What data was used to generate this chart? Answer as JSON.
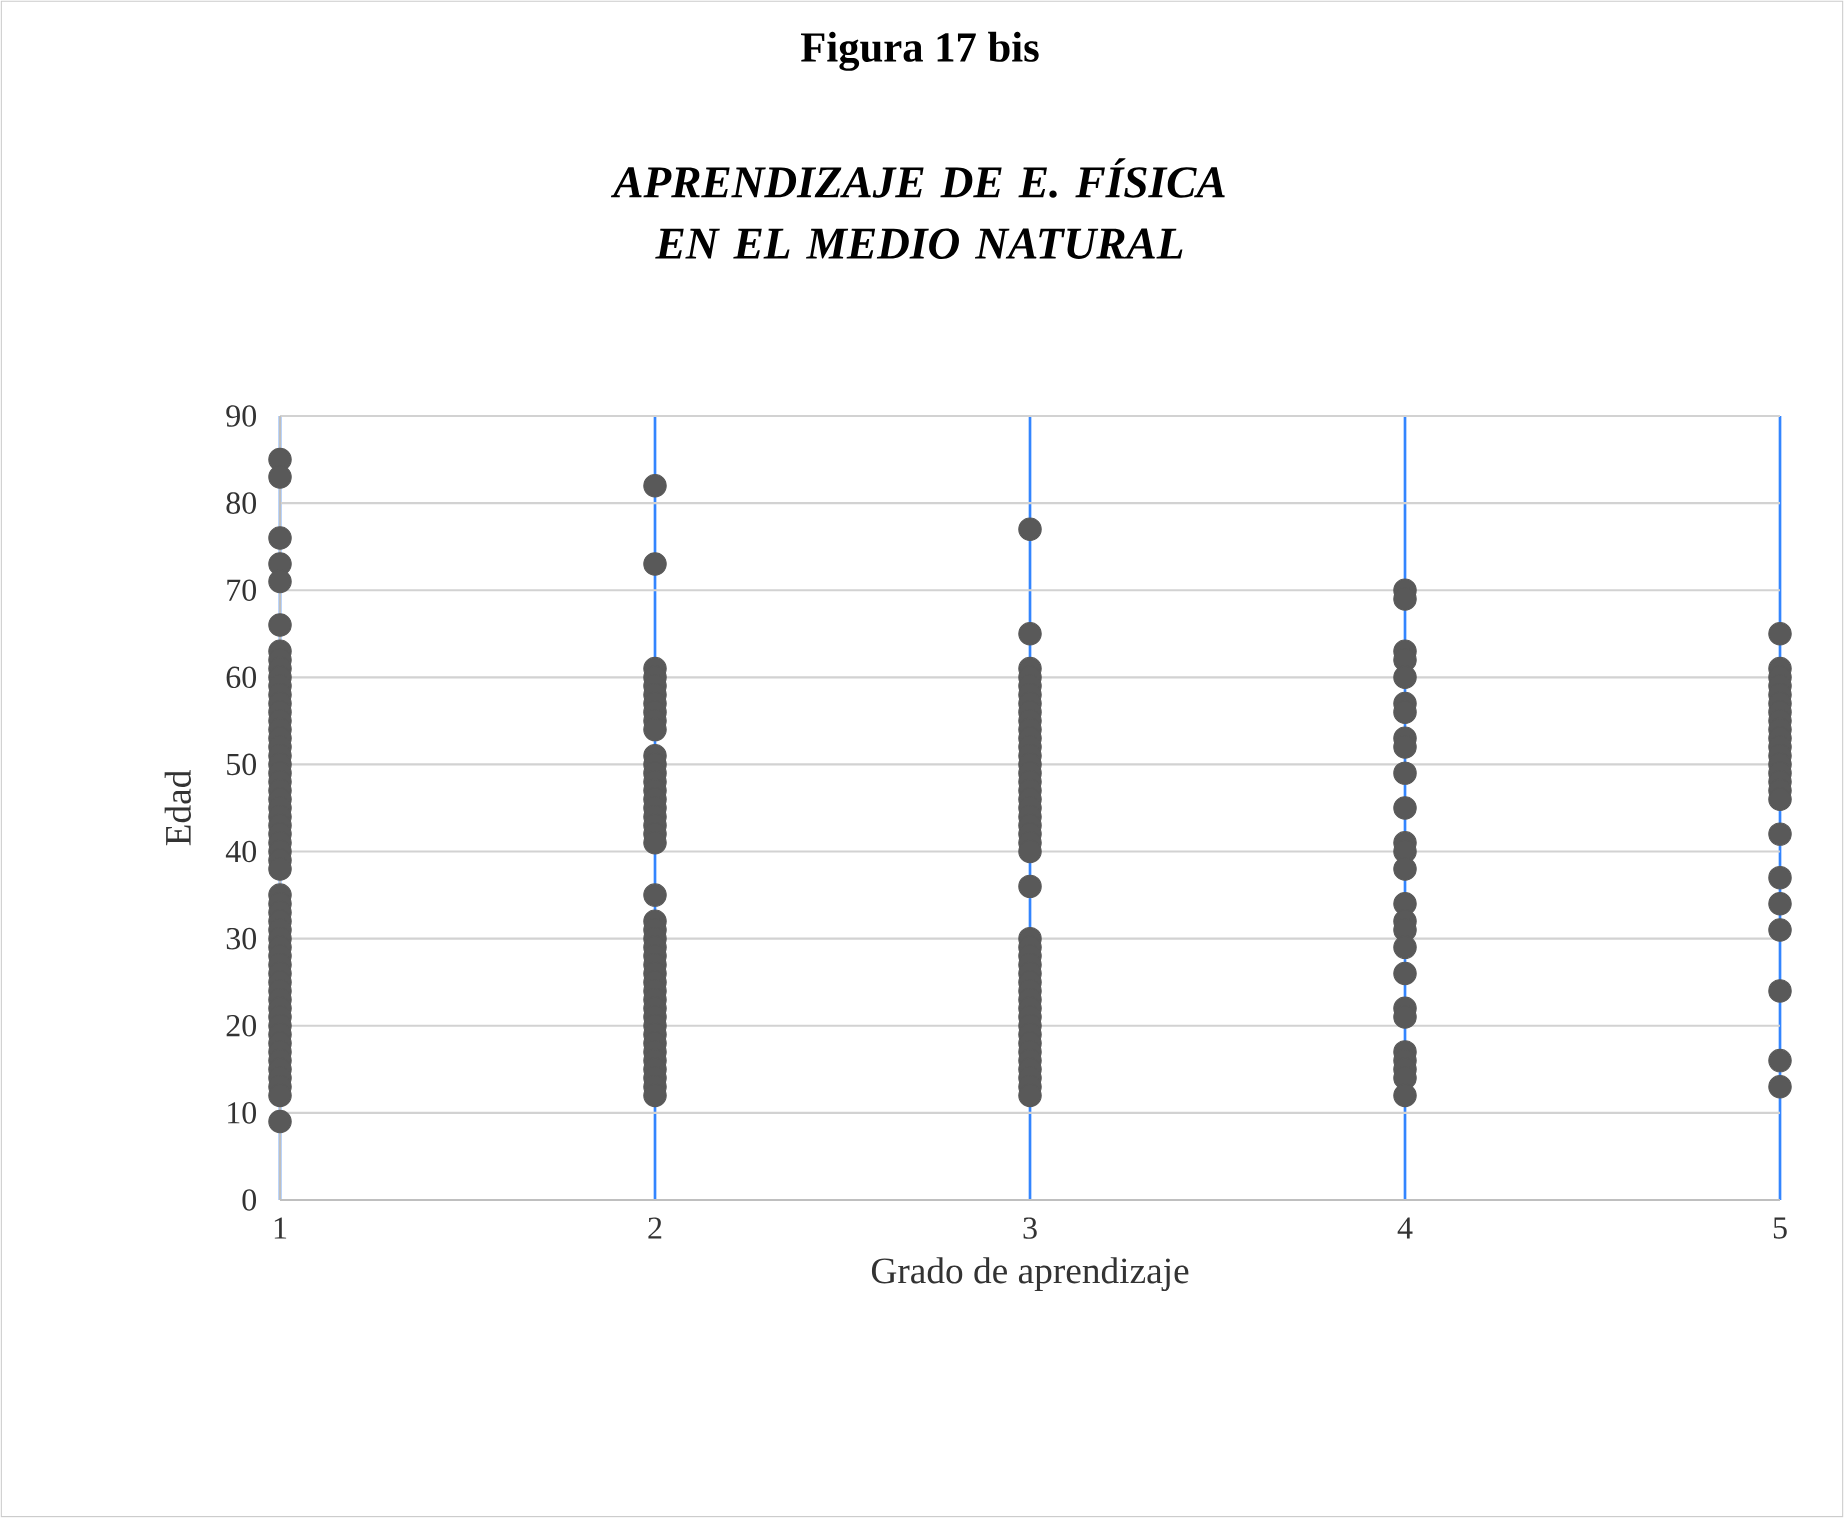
{
  "chart_data": {
    "type": "scatter",
    "title": "Figura 17  bis",
    "subtitle": "APRENDIZAJE DE E. FÍSICA EN EL MEDIO NATURAL",
    "xlabel": "Grado de aprendizaje",
    "ylabel": "Edad",
    "x": [
      1,
      1,
      1,
      1,
      1,
      1,
      1,
      1,
      1,
      1,
      1,
      1,
      1,
      1,
      1,
      1,
      1,
      1,
      1,
      1,
      1,
      1,
      1,
      1,
      1,
      1,
      1,
      1,
      1,
      1,
      1,
      1,
      1,
      1,
      1,
      1,
      1,
      1,
      1,
      1,
      1,
      1,
      1,
      1,
      1,
      1,
      1,
      1,
      1,
      1,
      1,
      1,
      1,
      1,
      1,
      1,
      1,
      2,
      2,
      2,
      2,
      2,
      2,
      2,
      2,
      2,
      2,
      2,
      2,
      2,
      2,
      2,
      2,
      2,
      2,
      2,
      2,
      2,
      2,
      2,
      2,
      2,
      2,
      2,
      2,
      2,
      2,
      2,
      2,
      2,
      2,
      2,
      2,
      2,
      2,
      2,
      2,
      2,
      2,
      2,
      3,
      3,
      3,
      3,
      3,
      3,
      3,
      3,
      3,
      3,
      3,
      3,
      3,
      3,
      3,
      3,
      3,
      3,
      3,
      3,
      3,
      3,
      3,
      3,
      3,
      3,
      3,
      3,
      3,
      3,
      3,
      3,
      3,
      3,
      3,
      3,
      3,
      3,
      3,
      3,
      3,
      3,
      3,
      3,
      4,
      4,
      4,
      4,
      4,
      4,
      4,
      4,
      4,
      4,
      4,
      4,
      4,
      4,
      4,
      4,
      4,
      4,
      4,
      4,
      4,
      4,
      4,
      4,
      4,
      4,
      5,
      5,
      5,
      5,
      5,
      5,
      5,
      5,
      5,
      5,
      5,
      5,
      5,
      5,
      5,
      5,
      5,
      5,
      5,
      5,
      5,
      5,
      5,
      5
    ],
    "values": [
      85,
      83,
      76,
      73,
      71,
      66,
      63,
      62,
      61,
      60,
      59,
      58,
      57,
      56,
      55,
      54,
      53,
      52,
      51,
      50,
      49,
      48,
      47,
      46,
      45,
      44,
      43,
      42,
      41,
      40,
      39,
      38,
      35,
      34,
      33,
      32,
      31,
      30,
      29,
      28,
      27,
      26,
      25,
      24,
      23,
      22,
      21,
      20,
      19,
      18,
      17,
      16,
      15,
      14,
      13,
      12,
      9,
      82,
      73,
      61,
      60,
      59,
      58,
      57,
      56,
      55,
      54,
      51,
      50,
      49,
      48,
      47,
      46,
      45,
      44,
      43,
      42,
      41,
      35,
      32,
      31,
      30,
      29,
      28,
      27,
      26,
      25,
      24,
      23,
      22,
      21,
      20,
      19,
      18,
      17,
      16,
      15,
      14,
      13,
      12,
      77,
      65,
      61,
      60,
      59,
      58,
      57,
      56,
      55,
      54,
      53,
      52,
      51,
      50,
      49,
      48,
      47,
      46,
      45,
      44,
      43,
      42,
      41,
      40,
      36,
      30,
      29,
      28,
      27,
      26,
      25,
      24,
      23,
      22,
      21,
      20,
      19,
      18,
      17,
      16,
      15,
      14,
      13,
      12,
      70,
      69,
      63,
      62,
      60,
      57,
      56,
      53,
      52,
      49,
      45,
      41,
      40,
      38,
      34,
      32,
      31,
      29,
      26,
      22,
      21,
      17,
      16,
      15,
      14,
      12,
      65,
      61,
      60,
      59,
      58,
      57,
      56,
      55,
      54,
      53,
      52,
      51,
      50,
      49,
      48,
      47,
      46,
      42,
      37,
      34,
      31,
      24,
      16,
      13
    ],
    "color": "#595959",
    "marker": "circle",
    "xlim": [
      1,
      5
    ],
    "ylim": [
      0,
      90
    ],
    "xticks": [
      1,
      2,
      3,
      4,
      5
    ],
    "yticks": [
      0,
      10,
      20,
      30,
      40,
      50,
      60,
      70,
      80,
      90
    ],
    "grid": true
  }
}
